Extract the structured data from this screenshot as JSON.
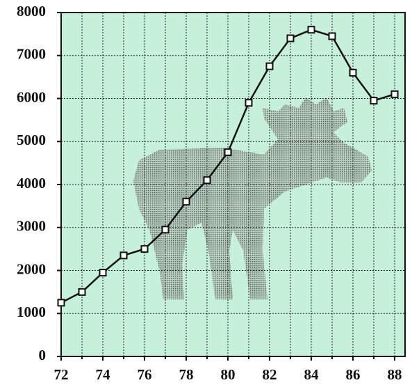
{
  "chart_data": {
    "type": "line",
    "x": [
      72,
      73,
      74,
      75,
      76,
      77,
      78,
      79,
      80,
      81,
      82,
      83,
      84,
      85,
      86,
      87,
      88
    ],
    "series": [
      {
        "color": "#111111",
        "values": [
          1250,
          1500,
          1950,
          2350,
          2500,
          2950,
          3600,
          4100,
          4750,
          5900,
          6750,
          7400,
          7600,
          7450,
          6600,
          5950,
          6100
        ]
      }
    ],
    "xlim": [
      72,
      88.5
    ],
    "ylim": [
      0,
      8000
    ],
    "xticks": [
      72,
      74,
      76,
      78,
      80,
      82,
      84,
      86,
      88
    ],
    "xminorticks": [
      73,
      75,
      77,
      79,
      81,
      83,
      85,
      87
    ],
    "yticks": [
      0,
      1000,
      2000,
      3000,
      4000,
      5000,
      6000,
      7000,
      8000
    ],
    "grid": true,
    "background": "#c6f0da"
  }
}
